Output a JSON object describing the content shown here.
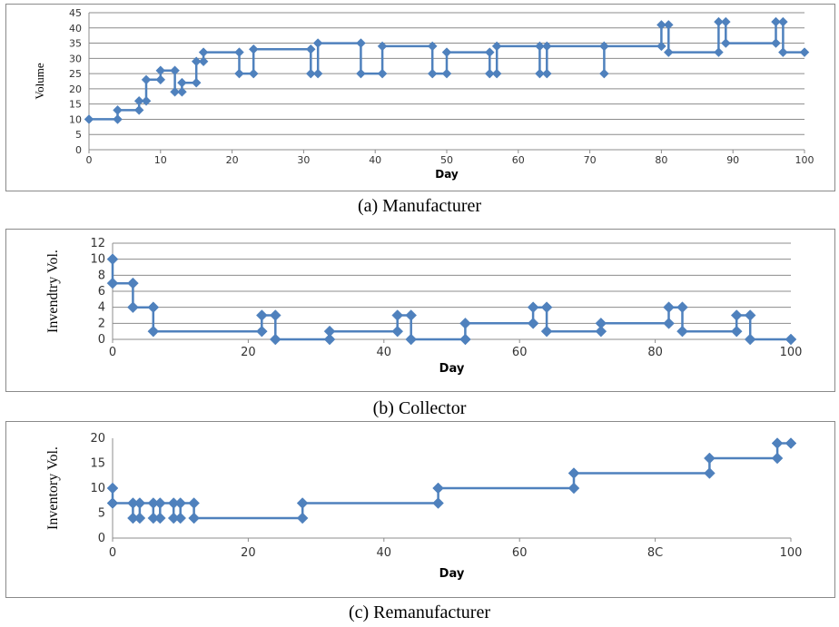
{
  "captions": {
    "a": "(a) Manufacturer",
    "b": "(b)   Collector",
    "c": "(c) Remanufacturer"
  },
  "colors": {
    "series": "#4f81bd",
    "grid": "#8c8c8c",
    "axis": "#8c8c8c"
  },
  "chart_data": [
    {
      "type": "line",
      "step": true,
      "xlabel": "Day",
      "ylabel": "Volume",
      "xlim": [
        0,
        100
      ],
      "ylim": [
        0,
        45
      ],
      "x_ticks": [
        "0",
        "10",
        "20",
        "30",
        "40",
        "50",
        "60",
        "70",
        "80",
        "90",
        "100"
      ],
      "y_ticks": [
        "0",
        "5",
        "10",
        "15",
        "20",
        "25",
        "30",
        "35",
        "40",
        "45"
      ],
      "grid": true,
      "legend": "none",
      "points": [
        [
          0,
          10
        ],
        [
          4,
          10
        ],
        [
          4,
          13
        ],
        [
          7,
          13
        ],
        [
          7,
          16
        ],
        [
          8,
          16
        ],
        [
          8,
          23
        ],
        [
          10,
          23
        ],
        [
          10,
          26
        ],
        [
          12,
          26
        ],
        [
          12,
          19
        ],
        [
          13,
          19
        ],
        [
          13,
          22
        ],
        [
          15,
          22
        ],
        [
          15,
          29
        ],
        [
          16,
          29
        ],
        [
          16,
          32
        ],
        [
          21,
          32
        ],
        [
          21,
          25
        ],
        [
          23,
          25
        ],
        [
          23,
          33
        ],
        [
          31,
          33
        ],
        [
          31,
          25
        ],
        [
          32,
          25
        ],
        [
          32,
          35
        ],
        [
          38,
          35
        ],
        [
          38,
          25
        ],
        [
          41,
          25
        ],
        [
          41,
          34
        ],
        [
          48,
          34
        ],
        [
          48,
          25
        ],
        [
          50,
          25
        ],
        [
          50,
          32
        ],
        [
          56,
          32
        ],
        [
          56,
          25
        ],
        [
          57,
          25
        ],
        [
          57,
          34
        ],
        [
          63,
          34
        ],
        [
          63,
          25
        ],
        [
          64,
          25
        ],
        [
          64,
          34
        ],
        [
          72,
          34
        ],
        [
          72,
          25
        ],
        [
          72,
          34
        ],
        [
          80,
          34
        ],
        [
          80,
          41
        ],
        [
          81,
          41
        ],
        [
          81,
          32
        ],
        [
          88,
          32
        ],
        [
          88,
          42
        ],
        [
          89,
          42
        ],
        [
          89,
          35
        ],
        [
          96,
          35
        ],
        [
          96,
          42
        ],
        [
          97,
          42
        ],
        [
          97,
          32
        ],
        [
          100,
          32
        ]
      ]
    },
    {
      "type": "line",
      "step": true,
      "xlabel": "Day",
      "ylabel": "Invendtry Vol.",
      "xlim": [
        0,
        100
      ],
      "ylim": [
        0,
        12
      ],
      "x_ticks": [
        "0",
        "20",
        "40",
        "60",
        "80",
        "100"
      ],
      "y_ticks": [
        "0",
        "2",
        "4",
        "6",
        "8",
        "10",
        "12"
      ],
      "grid": true,
      "legend": "none",
      "points": [
        [
          0,
          10
        ],
        [
          0,
          7
        ],
        [
          3,
          7
        ],
        [
          3,
          4
        ],
        [
          6,
          4
        ],
        [
          6,
          1
        ],
        [
          22,
          1
        ],
        [
          22,
          3
        ],
        [
          24,
          3
        ],
        [
          24,
          0
        ],
        [
          32,
          0
        ],
        [
          32,
          1
        ],
        [
          42,
          1
        ],
        [
          42,
          3
        ],
        [
          44,
          3
        ],
        [
          44,
          0
        ],
        [
          52,
          0
        ],
        [
          52,
          2
        ],
        [
          62,
          2
        ],
        [
          62,
          4
        ],
        [
          64,
          4
        ],
        [
          64,
          1
        ],
        [
          72,
          1
        ],
        [
          72,
          2
        ],
        [
          82,
          2
        ],
        [
          82,
          4
        ],
        [
          84,
          4
        ],
        [
          84,
          1
        ],
        [
          92,
          1
        ],
        [
          92,
          3
        ],
        [
          94,
          3
        ],
        [
          94,
          0
        ],
        [
          100,
          0
        ]
      ]
    },
    {
      "type": "line",
      "step": true,
      "xlabel": "Day",
      "ylabel": "Inventory Vol.",
      "xlim": [
        0,
        100
      ],
      "ylim": [
        0,
        20
      ],
      "x_ticks": [
        "0",
        "20",
        "40",
        "60",
        "8C",
        "100"
      ],
      "y_ticks": [
        "0",
        "5",
        "10",
        "15",
        "20"
      ],
      "grid": false,
      "legend": "none",
      "points": [
        [
          0,
          10
        ],
        [
          0,
          7
        ],
        [
          3,
          7
        ],
        [
          3,
          4
        ],
        [
          4,
          4
        ],
        [
          4,
          7
        ],
        [
          6,
          7
        ],
        [
          6,
          4
        ],
        [
          7,
          4
        ],
        [
          7,
          7
        ],
        [
          9,
          7
        ],
        [
          9,
          4
        ],
        [
          10,
          4
        ],
        [
          10,
          7
        ],
        [
          12,
          7
        ],
        [
          12,
          4
        ],
        [
          28,
          4
        ],
        [
          28,
          7
        ],
        [
          48,
          7
        ],
        [
          48,
          10
        ],
        [
          68,
          10
        ],
        [
          68,
          13
        ],
        [
          88,
          13
        ],
        [
          88,
          16
        ],
        [
          98,
          16
        ],
        [
          98,
          19
        ],
        [
          100,
          19
        ]
      ]
    }
  ]
}
